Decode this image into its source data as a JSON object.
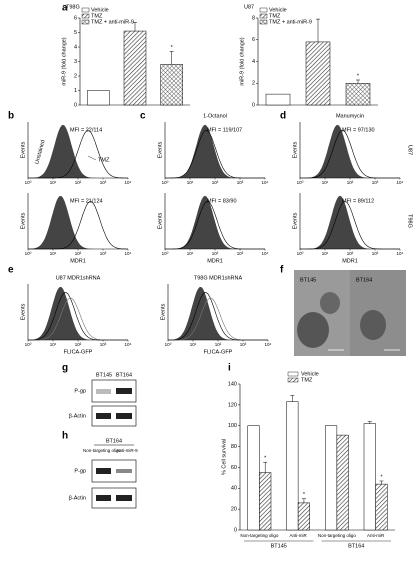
{
  "chart_data": [
    {
      "type": "bar",
      "title": "T98G",
      "ylabel": "miR-9 (fold change)",
      "categories": [
        "Vehicle",
        "TMZ",
        "TMZ + anti-miR-9"
      ],
      "values": [
        1,
        5.1,
        2.8
      ],
      "errors": [
        null,
        0.6,
        0.9
      ],
      "significance": [
        null,
        null,
        "*"
      ],
      "patterns": [
        "none",
        "diag",
        "cross"
      ],
      "ylim": [
        0,
        6
      ],
      "yticks": [
        0,
        1,
        2,
        3,
        4,
        5,
        6
      ],
      "legend": "upper left"
    },
    {
      "type": "bar",
      "title": "U87",
      "ylabel": "miR-9 (fold change)",
      "categories": [
        "Vehicle",
        "TMZ",
        "TMZ + anti-miR-9"
      ],
      "values": [
        1,
        5.8,
        2.0
      ],
      "errors": [
        null,
        2.1,
        0.3
      ],
      "significance": [
        null,
        null,
        "*"
      ],
      "patterns": [
        "none",
        "diag",
        "cross"
      ],
      "ylim": [
        0,
        8
      ],
      "yticks": [
        0,
        2,
        4,
        6,
        8
      ],
      "legend": "upper left"
    },
    {
      "type": "groupedbar",
      "ylabel": "% Cell survival",
      "categories": [
        "Non-targeting oligo",
        "Anti-miR",
        "Non-targeting oligo",
        "Anti-miR"
      ],
      "groups": [
        "BT145",
        "BT164"
      ],
      "series": [
        {
          "name": "Vehicle",
          "pattern": "none",
          "values": [
            100,
            123,
            100,
            102
          ],
          "errors": [
            null,
            6,
            null,
            2
          ],
          "significance": [
            null,
            null,
            null,
            null
          ]
        },
        {
          "name": "TMZ",
          "pattern": "diag",
          "values": [
            55,
            26,
            91,
            44
          ],
          "errors": [
            10,
            4,
            null,
            3
          ],
          "significance": [
            "*",
            "*",
            null,
            "*"
          ]
        }
      ],
      "ylim": [
        0,
        140
      ],
      "yticks": [
        0,
        20,
        40,
        60,
        80,
        100,
        120,
        140
      ],
      "legend": "upper center"
    }
  ],
  "panel_labels": [
    "a",
    "b",
    "c",
    "d",
    "e",
    "f",
    "g",
    "h",
    "i"
  ],
  "flow": {
    "ylabel": "Events",
    "xlabel": "MDR1",
    "xticks": [
      "10⁰",
      "10¹",
      "10²",
      "10³",
      "10⁴"
    ],
    "column_titles": [
      "1-Octanol",
      "Manumycin"
    ],
    "row_labels": [
      "U87",
      "T98G"
    ],
    "annotations": [
      "Unstained",
      "TMZ"
    ],
    "mfi": [
      [
        "MFI = 22/114",
        "MFI = 119/107",
        "MFI = 97/130"
      ],
      [
        "MFI = 21/124",
        "MFI = 83/90",
        "MFI = 89/112"
      ]
    ]
  },
  "flica": {
    "titles": [
      "U87 MDR1shRNA",
      "T98G MDR1shRNA"
    ],
    "xlabel": "FLICA-GFP"
  },
  "images": {
    "labels": [
      "BT145",
      "BT164"
    ]
  },
  "blot_g": {
    "cell_lines": [
      "BT145",
      "BT164"
    ],
    "proteins": [
      "P-gp",
      "β-Actin"
    ]
  },
  "blot_h": {
    "cell_line": "BT164",
    "conditions": [
      "Non-targeting oligo",
      "Anti-miR-9"
    ],
    "proteins": [
      "P-gp",
      "β-Actin"
    ]
  }
}
